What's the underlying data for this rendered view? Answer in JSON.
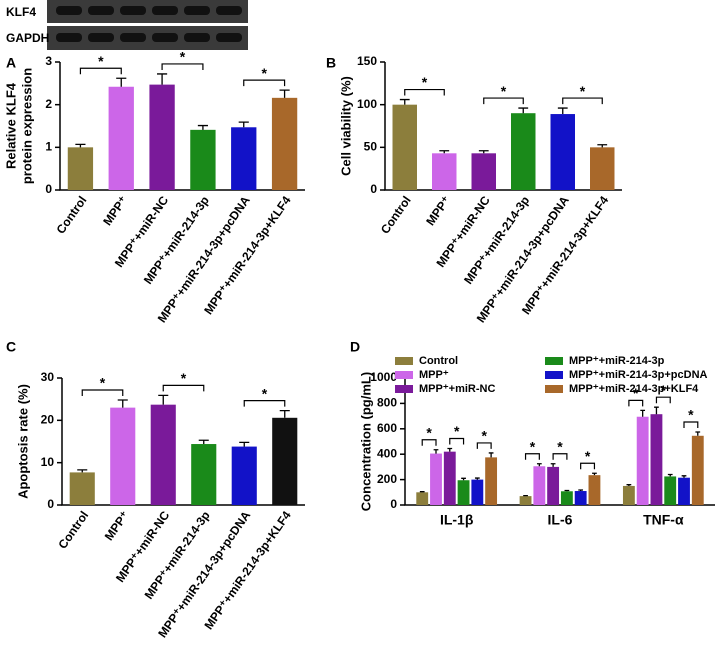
{
  "blot": {
    "rows": [
      "KLF4",
      "GAPDH"
    ]
  },
  "chart_data": [
    {
      "type": "bar",
      "panel": "A",
      "ylabel": [
        "Relative KLF4",
        "protein expression"
      ],
      "categories": [
        "Control",
        "MPP⁺",
        "MPP⁺+miR-NC",
        "MPP⁺+miR-214-3p",
        "MPP⁺+miR-214-3p+pcDNA",
        "MPP⁺+miR-214-3p+KLF4"
      ],
      "values": [
        1.0,
        2.42,
        2.47,
        1.41,
        1.47,
        2.16
      ],
      "errors": [
        0.07,
        0.2,
        0.25,
        0.1,
        0.12,
        0.18
      ],
      "colors": [
        "#8c7e3c",
        "#cc66e8",
        "#7a1a9a",
        "#1a8a1a",
        "#1212c8",
        "#a8682a"
      ],
      "ylim": [
        0,
        3
      ],
      "yticks": [
        0,
        1,
        2,
        3
      ],
      "annotations": [
        "*",
        "*",
        "*"
      ]
    },
    {
      "type": "bar",
      "panel": "B",
      "ylabel": [
        "Cell viability (%)"
      ],
      "categories": [
        "Control",
        "MPP⁺",
        "MPP⁺+miR-NC",
        "MPP⁺+miR-214-3p",
        "MPP⁺+miR-214-3p+pcDNA",
        "MPP⁺+miR-214-3p+KLF4"
      ],
      "values": [
        100,
        43,
        43,
        90,
        89,
        50
      ],
      "errors": [
        6,
        3,
        3,
        6,
        7,
        3
      ],
      "colors": [
        "#8c7e3c",
        "#cc66e8",
        "#7a1a9a",
        "#1a8a1a",
        "#1212c8",
        "#a8682a"
      ],
      "ylim": [
        0,
        150
      ],
      "yticks": [
        0,
        50,
        100,
        150
      ],
      "annotations": [
        "*",
        "*",
        "*"
      ]
    },
    {
      "type": "bar",
      "panel": "C",
      "ylabel": [
        "Apoptosis rate (%)"
      ],
      "categories": [
        "Control",
        "MPP⁺",
        "MPP⁺+miR-NC",
        "MPP⁺+miR-214-3p",
        "MPP⁺+miR-214-3p+pcDNA",
        "MPP⁺+miR-214-3p+KLF4"
      ],
      "values": [
        7.7,
        23,
        23.7,
        14.4,
        13.8,
        20.6
      ],
      "errors": [
        0.6,
        1.8,
        2.2,
        0.9,
        1.0,
        1.7
      ],
      "colors": [
        "#8c7e3c",
        "#cc66e8",
        "#7a1a9a",
        "#1a8a1a",
        "#1212c8",
        "#111111"
      ],
      "ylim": [
        0,
        30
      ],
      "yticks": [
        0,
        10,
        20,
        30
      ],
      "annotations": [
        "*",
        "*",
        "*"
      ]
    },
    {
      "type": "grouped_bar",
      "panel": "D",
      "ylabel": [
        "Concentration (pg/mL)"
      ],
      "categories": [
        "IL-1β",
        "IL-6",
        "TNF-α"
      ],
      "series": [
        {
          "name": "Control",
          "color": "#8c7e3c",
          "values": [
            100,
            70,
            150
          ],
          "errors": [
            5,
            4,
            10
          ]
        },
        {
          "name": "MPP⁺",
          "color": "#cc66e8",
          "values": [
            405,
            305,
            695
          ],
          "errors": [
            30,
            20,
            50
          ]
        },
        {
          "name": "MPP⁺+miR-NC",
          "color": "#7a1a9a",
          "values": [
            420,
            300,
            715
          ],
          "errors": [
            25,
            25,
            55
          ]
        },
        {
          "name": "MPP⁺+miR-214-3p",
          "color": "#1a8a1a",
          "values": [
            195,
            108,
            225
          ],
          "errors": [
            15,
            6,
            15
          ]
        },
        {
          "name": "MPP⁺+miR-214-3p+pcDNA",
          "color": "#1212c8",
          "values": [
            200,
            110,
            215
          ],
          "errors": [
            12,
            8,
            15
          ]
        },
        {
          "name": "MPP⁺+miR-214-3p+KLF4",
          "color": "#a8682a",
          "values": [
            375,
            235,
            545
          ],
          "errors": [
            35,
            15,
            30
          ]
        }
      ],
      "ylim": [
        0,
        1000
      ],
      "yticks": [
        0,
        200,
        400,
        600,
        800,
        1000
      ],
      "annotations": [
        "*",
        "*",
        "*",
        "*",
        "*",
        "*",
        "*",
        "*",
        "*"
      ]
    }
  ]
}
